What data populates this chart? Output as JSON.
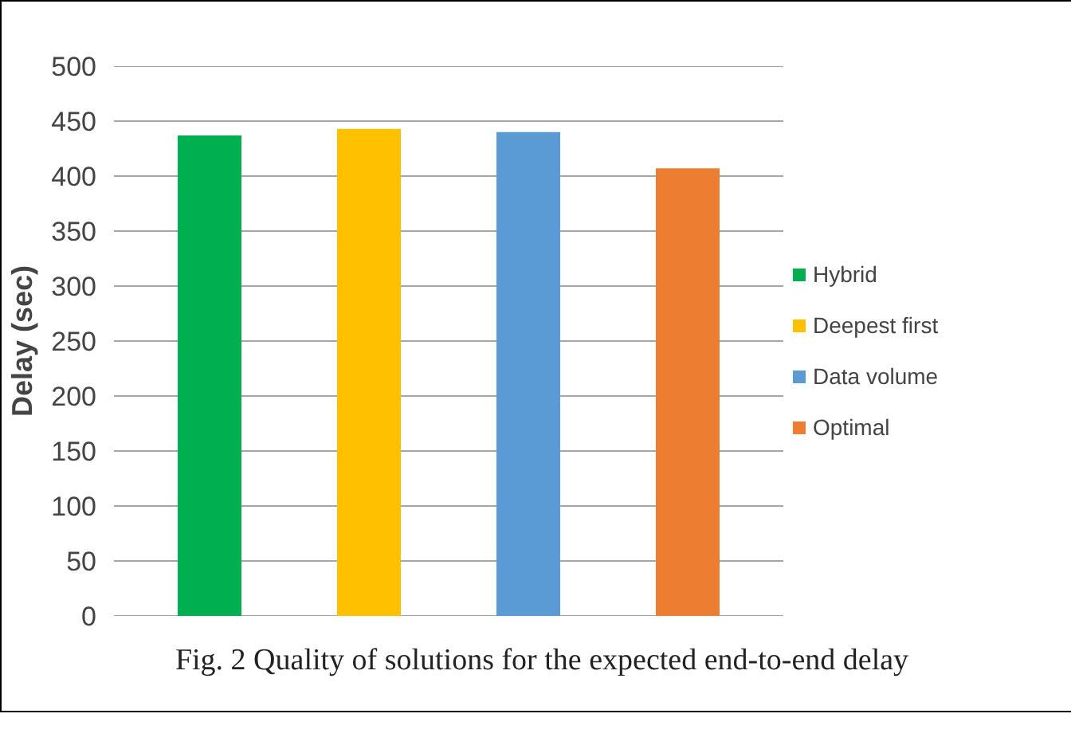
{
  "chart_data": {
    "type": "bar",
    "ylabel": "Delay (sec)",
    "categories": [
      null
    ],
    "series": [
      {
        "name": "Hybrid",
        "color": "#00b050",
        "values": [
          437
        ]
      },
      {
        "name": "Deepest first",
        "color": "#ffc000",
        "values": [
          443
        ]
      },
      {
        "name": "Data volume",
        "color": "#5b9bd5",
        "values": [
          440
        ]
      },
      {
        "name": "Optimal",
        "color": "#ed7d31",
        "values": [
          407
        ]
      }
    ],
    "ylim": [
      0,
      500
    ],
    "yticks": [
      0,
      50,
      100,
      150,
      200,
      250,
      300,
      350,
      400,
      450,
      500
    ],
    "grid": "y",
    "legend": "right",
    "tick_labels": "y",
    "annotations": [
      "Fig. 2 Quality of solutions for the expected end-to-end delay"
    ]
  }
}
